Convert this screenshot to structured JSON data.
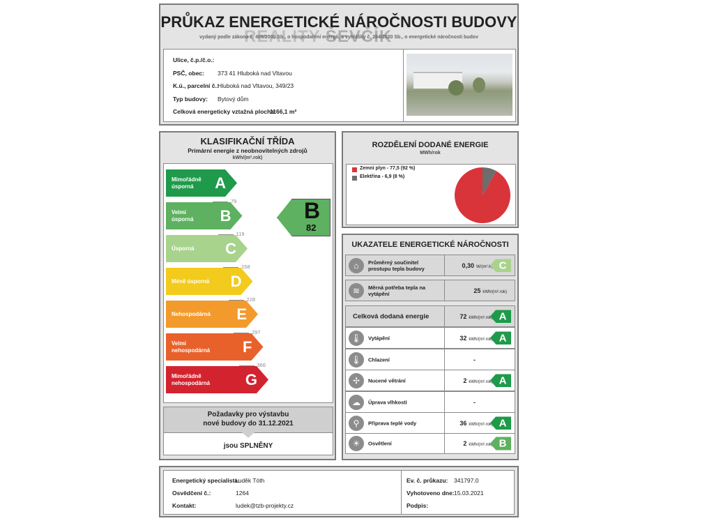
{
  "header": {
    "title": "PRŮKAZ ENERGETICKÉ NÁROČNOSTI BUDOVY",
    "subtitle": "vydaný podle zákona č. 406/2000 Sb., o hospodaření energií, a vyhlášky č. 264/2020 Sb., o energetické náročnosti budov",
    "watermark": "REALITY ŠEVČÍK"
  },
  "building": {
    "fields": [
      {
        "label": "Ulice, č.p./č.o.:",
        "value": ""
      },
      {
        "label": "PSČ, obec:",
        "value": "373 41 Hluboká nad Vltavou"
      },
      {
        "label": "K.ú., parcelní č.:",
        "value": "Hluboká nad Vltavou, 349/23"
      },
      {
        "label": "Typ budovy:",
        "value": "Bytový dům"
      }
    ],
    "area_label": "Celková energeticky vztažná plocha:",
    "area_value": "1166,1 m²"
  },
  "classification": {
    "title": "KLASIFIKAČNÍ TŘÍDA",
    "subtitle": "Primární energie z neobnovitelných zdrojů",
    "unit": "kWh/(m².rok)",
    "classes": [
      {
        "letter": "A",
        "name": "Mimořádně úsporná",
        "color": "#1e9a4a"
      },
      {
        "letter": "B",
        "name": "Velmi úsporná",
        "color": "#5db160"
      },
      {
        "letter": "C",
        "name": "Úsporná",
        "color": "#a8d38c"
      },
      {
        "letter": "D",
        "name": "Méně úsporná",
        "color": "#f2cb1c"
      },
      {
        "letter": "E",
        "name": "Nehospodárná",
        "color": "#f39a2c"
      },
      {
        "letter": "F",
        "name": "Velmi nehospodárná",
        "color": "#e9612a"
      },
      {
        "letter": "G",
        "name": "Mimořádně nehospodárná",
        "color": "#d2232f"
      }
    ],
    "thresholds": [
      "79",
      "119",
      "158",
      "228",
      "297",
      "366"
    ],
    "result": {
      "letter": "B",
      "value": "82",
      "color": "#5db160"
    },
    "requirements": {
      "line1": "Požadavky pro výstavbu",
      "line2": "nové budovy do 31.12.2021",
      "result": "jsou SPLNĚNY"
    }
  },
  "distribution": {
    "title": "ROZDĚLENÍ DODANÉ ENERGIE",
    "unit": "MWh/rok",
    "items": [
      {
        "label": "Zemní plyn - 77,5 (92 %)",
        "value": 77.5,
        "percent": 92,
        "color": "#d9343a"
      },
      {
        "label": "Elektřina - 6,9 (8 %)",
        "value": 6.9,
        "percent": 8,
        "color": "#6d6d6d"
      }
    ]
  },
  "indicators": {
    "title": "UKAZATELE ENERGETICKÉ NÁROČNOSTI",
    "rows": [
      {
        "icon": "house-icon",
        "glyph": "⌂",
        "name": "Průměrný součinitel prostupu tepla budovy",
        "value": "0,30",
        "unit": "W/(m².K)",
        "class": "C",
        "color": "#a8d38c"
      },
      {
        "icon": "heat-waves-icon",
        "glyph": "≋",
        "name": "Měrná potřeba tepla na vytápění",
        "value": "25",
        "unit": "kWh/(m².rok)",
        "class": "",
        "color": ""
      },
      {
        "icon": "",
        "glyph": "",
        "name": "Celková dodaná energie",
        "value": "72",
        "unit": "kWh/(m².rok)",
        "class": "A",
        "color": "#1e9a4a"
      },
      {
        "icon": "heating-thermometer-icon",
        "glyph": "🌡",
        "name": "Vytápění",
        "value": "32",
        "unit": "kWh/(m².rok)",
        "class": "A",
        "color": "#1e9a4a"
      },
      {
        "icon": "cooling-thermometer-icon",
        "glyph": "🌡",
        "name": "Chlazení",
        "value": "-",
        "unit": "",
        "class": "",
        "color": ""
      },
      {
        "icon": "fan-icon",
        "glyph": "✢",
        "name": "Nucené větrání",
        "value": "2",
        "unit": "kWh/(m².rok)",
        "class": "A",
        "color": "#1e9a4a"
      },
      {
        "icon": "humidity-cloud-icon",
        "glyph": "☁",
        "name": "Úprava vlhkosti",
        "value": "-",
        "unit": "",
        "class": "",
        "color": ""
      },
      {
        "icon": "water-tap-icon",
        "glyph": "⚲",
        "name": "Příprava teplé vody",
        "value": "36",
        "unit": "kWh/(m².rok)",
        "class": "A",
        "color": "#1e9a4a"
      },
      {
        "icon": "light-bulb-icon",
        "glyph": "☀",
        "name": "Osvětlení",
        "value": "2",
        "unit": "kWh/(m².rok)",
        "class": "B",
        "color": "#5db160"
      }
    ]
  },
  "footer": {
    "left": [
      {
        "label": "Energetický specialista:",
        "value": "Luděk Tóth"
      },
      {
        "label": "Osvědčení č.:",
        "value": "1264"
      },
      {
        "label": "Kontakt:",
        "value": "ludek@tzb-projekty.cz"
      }
    ],
    "right": [
      {
        "label": "Ev. č. průkazu:",
        "value": "341797.0"
      },
      {
        "label": "Vyhotoveno dne:",
        "value": "15.03.2021"
      },
      {
        "label": "Podpis:",
        "value": ""
      }
    ]
  }
}
